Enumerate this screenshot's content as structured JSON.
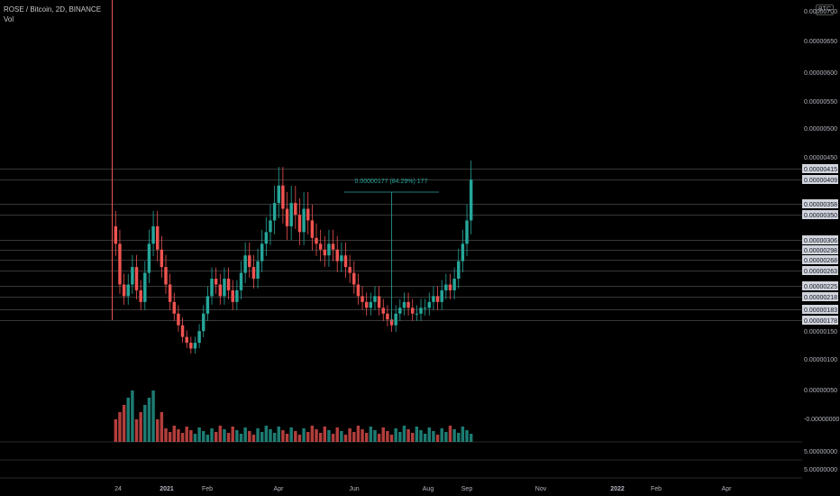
{
  "header": {
    "symbol_line": "ROSE / Bitcoin, 2D, BINANCE",
    "volume_label": "Vol",
    "currency": "BTC"
  },
  "colors": {
    "background": "#000000",
    "up": "#26a69a",
    "down": "#ef5350",
    "level_line": "#3a3a3a",
    "measure": "#26a69a",
    "axis_text": "#b2b5be",
    "tag_bg": "#d1d4dc"
  },
  "chart_data": {
    "type": "candlestick",
    "price_axis": {
      "ticks": [
        "0.00000700",
        "0.00000650",
        "0.00000600",
        "0.00000550",
        "0.00000500",
        "0.00000450",
        "0.00000150",
        "0.00000100",
        "0.00000050",
        "-0.00000000"
      ],
      "range": [
        0,
        7e-06
      ]
    },
    "volume_axis": {
      "ticks": [
        "5.00000000",
        "5.00000000"
      ]
    },
    "time_axis": {
      "ticks": [
        "24",
        "2021",
        "Feb",
        "Apr",
        "Jun",
        "Aug",
        "Sep",
        "Nov",
        "2022",
        "Feb",
        "Apr"
      ]
    },
    "price_tags": [
      "0.00000415",
      "0.00000409",
      "0.00000358",
      "0.00000350",
      "0.00000306",
      "0.00000298",
      "0.00000268",
      "0.00000263",
      "0.00000225",
      "0.00000218",
      "0.00000183",
      "0.00000178"
    ],
    "measure_label": "0.00000177 (84.29%) 177",
    "series_close": [
      3.0,
      2.3,
      2.1,
      2.3,
      2.6,
      2.2,
      2.0,
      2.5,
      3.0,
      3.3,
      2.9,
      2.6,
      2.3,
      2.0,
      1.8,
      1.6,
      1.4,
      1.3,
      1.2,
      1.3,
      1.5,
      1.8,
      2.1,
      2.4,
      2.3,
      2.1,
      2.4,
      2.2,
      2.0,
      2.2,
      2.5,
      2.8,
      2.6,
      2.4,
      2.7,
      3.0,
      3.2,
      3.4,
      3.7,
      4.0,
      3.6,
      3.3,
      3.7,
      3.5,
      3.2,
      3.6,
      3.4,
      3.1,
      3.0,
      2.9,
      2.8,
      3.0,
      2.9,
      2.7,
      2.8,
      2.6,
      2.5,
      2.3,
      2.1,
      2.0,
      1.9,
      2.0,
      2.1,
      1.9,
      1.8,
      1.7,
      1.6,
      1.8,
      1.9,
      2.0,
      1.9,
      1.8,
      1.8,
      1.9,
      1.9,
      2.0,
      2.1,
      2.0,
      2.2,
      2.3,
      2.2,
      2.4,
      2.7,
      3.0,
      3.4,
      4.1
    ]
  }
}
